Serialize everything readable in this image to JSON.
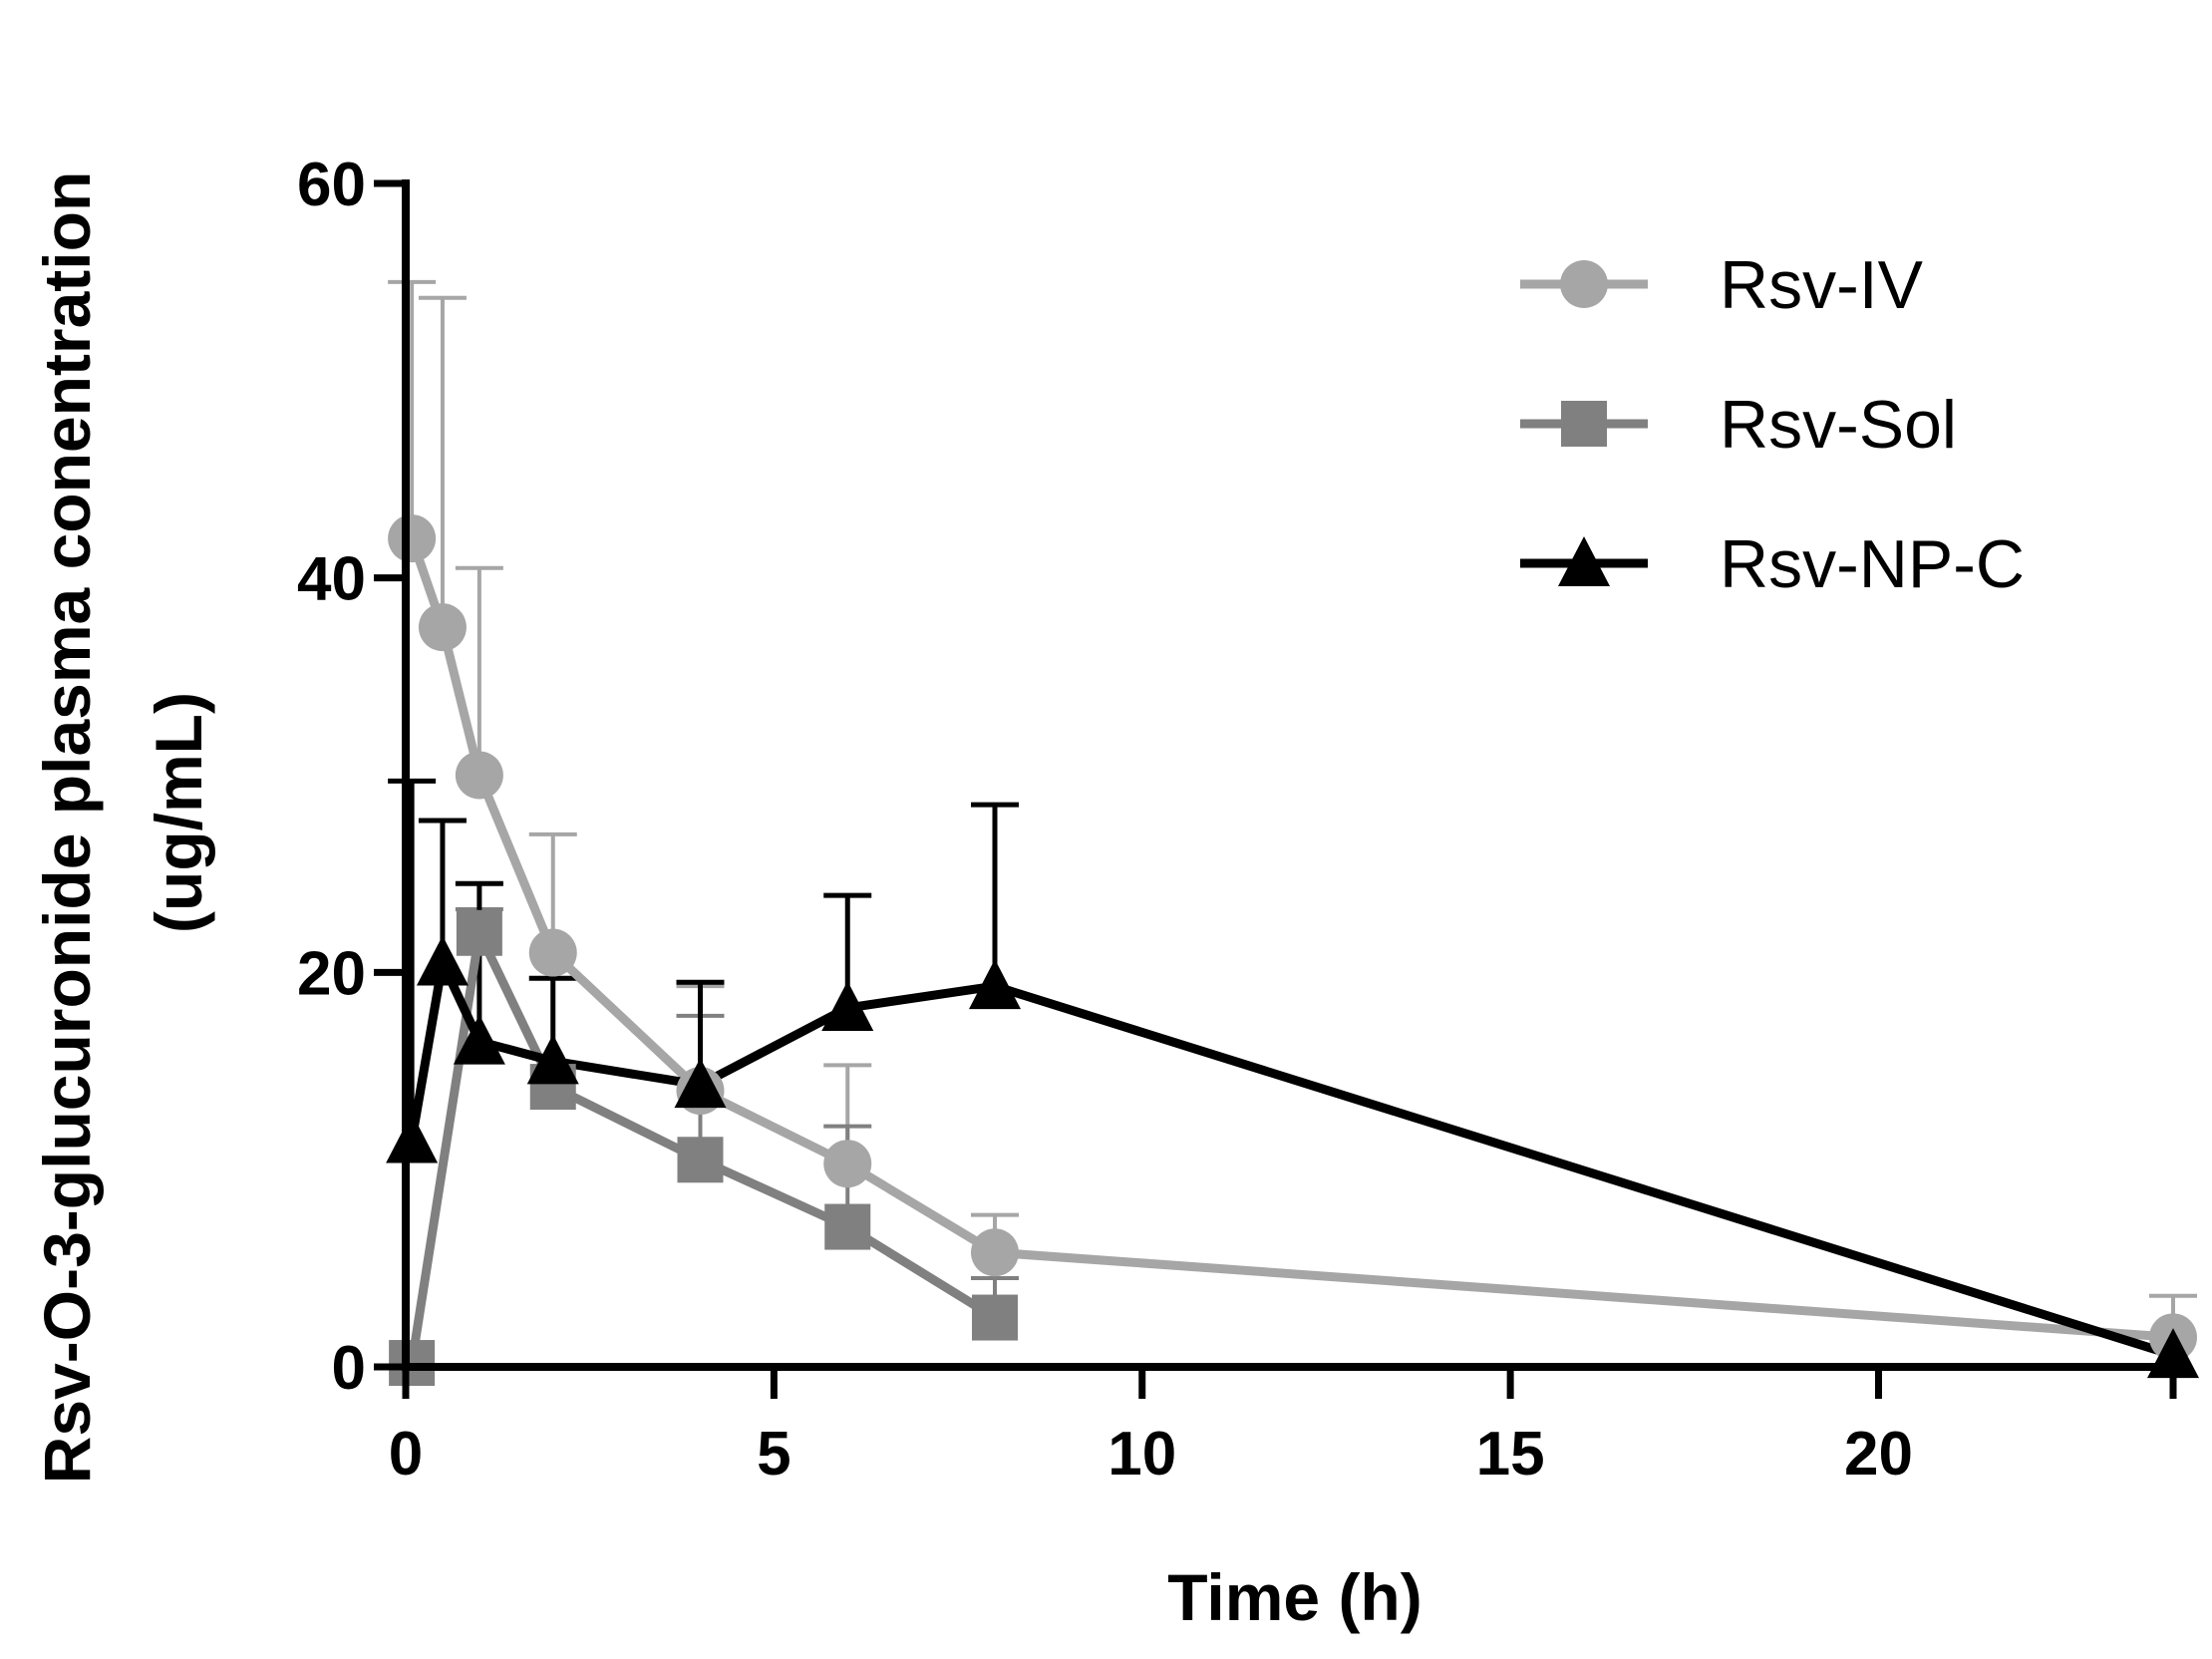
{
  "chart_data": {
    "type": "line",
    "title": "",
    "xlabel": "Time (h)",
    "ylabel_line1": "Rsv-O-3-glucuronide plasma conentration",
    "ylabel_line2": "(ug/mL)",
    "xlim": [
      0,
      24
    ],
    "ylim": [
      0,
      60
    ],
    "xticks": [
      0,
      5,
      10,
      15,
      20
    ],
    "yticks": [
      0,
      20,
      40,
      60
    ],
    "xtick_labels": [
      "0",
      "5",
      "10",
      "15",
      "20"
    ],
    "ytick_labels": [
      "0",
      "20",
      "40",
      "60"
    ],
    "grid": false,
    "legend_position": "top-right",
    "series": [
      {
        "name": "Rsv-IV",
        "marker": "circle",
        "color": "#a6a6a6",
        "x": [
          0.083,
          0.5,
          1,
          2,
          4,
          6,
          8,
          24
        ],
        "y": [
          42,
          37.5,
          30,
          21,
          14,
          10.3,
          5.8,
          1.5
        ],
        "err_upper": [
          55,
          54.2,
          40.5,
          27,
          19.3,
          15.3,
          7.7,
          3.6
        ]
      },
      {
        "name": "Rsv-Sol",
        "marker": "square",
        "color": "#808080",
        "x": [
          0.083,
          1,
          2,
          4,
          6,
          8
        ],
        "y": [
          0.2,
          22,
          14.2,
          10.5,
          7.1,
          2.5
        ],
        "err_upper": [
          null,
          23.2,
          null,
          17.8,
          12.2,
          4.5
        ]
      },
      {
        "name": "Rsv-NP-C",
        "marker": "triangle",
        "color": "#000000",
        "x": [
          0.083,
          0.5,
          1,
          2,
          4,
          6,
          8,
          24
        ],
        "y": [
          11.5,
          20.5,
          16.5,
          15.5,
          14.3,
          18.2,
          19.3,
          0.6
        ],
        "err_upper": [
          29.7,
          27.7,
          24.5,
          19.7,
          19.5,
          23.9,
          28.5,
          null
        ]
      }
    ]
  }
}
